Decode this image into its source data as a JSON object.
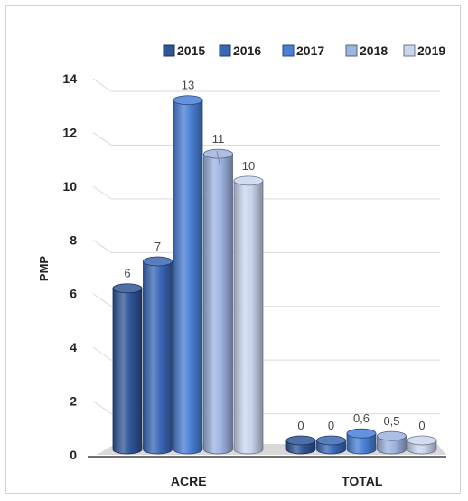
{
  "chart_data": {
    "type": "bar",
    "title": "",
    "xlabel": "",
    "ylabel": "PMP",
    "ylim": [
      0,
      14
    ],
    "yticks": [
      0,
      2,
      4,
      6,
      8,
      10,
      12,
      14
    ],
    "grid": true,
    "legend_position": "top",
    "categories": [
      "ACRE",
      "TOTAL"
    ],
    "series": [
      {
        "name": "2015",
        "color": "#2f5597",
        "values": [
          6,
          0
        ],
        "labels": [
          "6",
          "0"
        ]
      },
      {
        "name": "2016",
        "color": "#3a67b5",
        "values": [
          7,
          0
        ],
        "labels": [
          "7",
          "0"
        ]
      },
      {
        "name": "2017",
        "color": "#4a7fd6",
        "values": [
          13,
          0.6
        ],
        "labels": [
          "13",
          "0,6"
        ]
      },
      {
        "name": "2018",
        "color": "#9db3e0",
        "values": [
          11,
          0.5
        ],
        "labels": [
          "11",
          "0,5"
        ]
      },
      {
        "name": "2019",
        "color": "#c9d5ef",
        "values": [
          10,
          0
        ],
        "labels": [
          "10",
          "0"
        ]
      }
    ]
  }
}
